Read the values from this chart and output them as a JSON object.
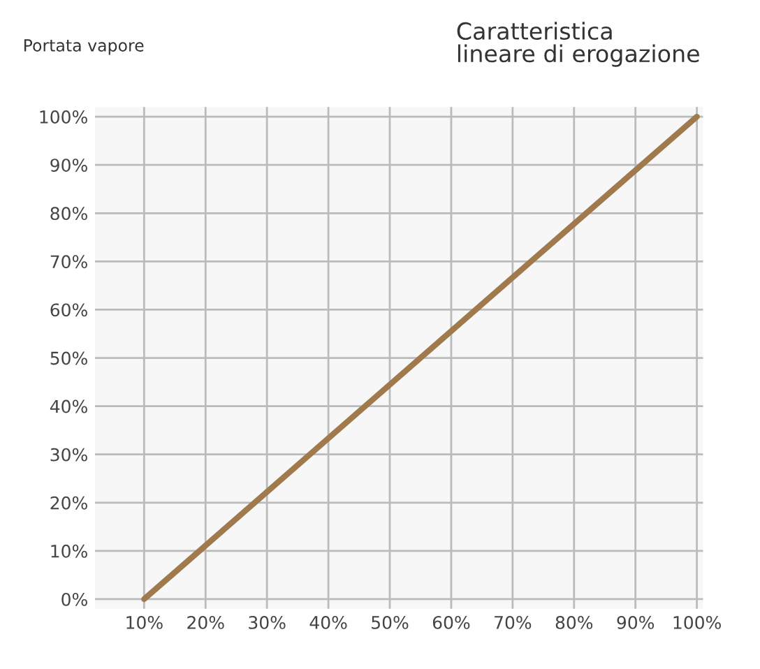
{
  "chart_data": {
    "type": "line",
    "title": "Caratteristica\nlineare di erogazione",
    "ylabel": "Portata vapore",
    "x": [
      10,
      100
    ],
    "series": [
      {
        "color": "#a07a4c",
        "values": [
          0,
          100
        ]
      }
    ],
    "xlim": [
      2,
      101
    ],
    "ylim": [
      -2,
      102
    ],
    "xticks": [
      {
        "value": 10,
        "label": "10%"
      },
      {
        "value": 20,
        "label": "20%"
      },
      {
        "value": 30,
        "label": "30%"
      },
      {
        "value": 40,
        "label": "40%"
      },
      {
        "value": 50,
        "label": "50%"
      },
      {
        "value": 60,
        "label": "60%"
      },
      {
        "value": 70,
        "label": "70%"
      },
      {
        "value": 80,
        "label": "80%"
      },
      {
        "value": 90,
        "label": "90%"
      },
      {
        "value": 100,
        "label": "100%"
      }
    ],
    "yticks": [
      {
        "value": 0,
        "label": "0%"
      },
      {
        "value": 10,
        "label": "10%"
      },
      {
        "value": 20,
        "label": "20%"
      },
      {
        "value": 30,
        "label": "30%"
      },
      {
        "value": 40,
        "label": "40%"
      },
      {
        "value": 50,
        "label": "50%"
      },
      {
        "value": 60,
        "label": "60%"
      },
      {
        "value": 70,
        "label": "70%"
      },
      {
        "value": 80,
        "label": "80%"
      },
      {
        "value": 90,
        "label": "90%"
      },
      {
        "value": 100,
        "label": "100%"
      }
    ],
    "grid": true,
    "legend": false,
    "line_style": "solid",
    "marker": "none"
  }
}
